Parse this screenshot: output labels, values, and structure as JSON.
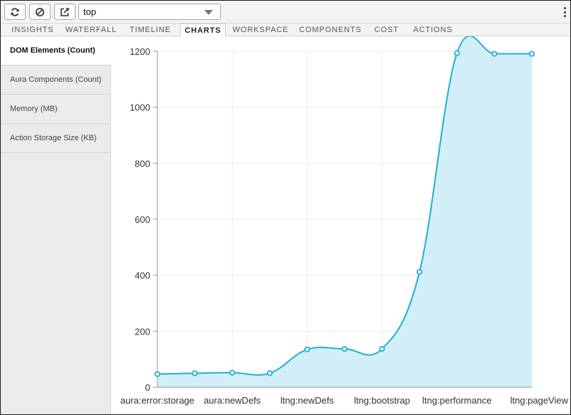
{
  "toolbar": {
    "refresh_icon": "refresh-icon",
    "clear_icon": "clear-icon",
    "open_icon": "open-external-icon",
    "select_value": "top"
  },
  "tabs": [
    {
      "label": "INSIGHTS"
    },
    {
      "label": "WATERFALL"
    },
    {
      "label": "TIMELINE"
    },
    {
      "label": "CHARTS",
      "active": true
    },
    {
      "label": "WORKSPACE"
    },
    {
      "label": "COMPONENTS"
    },
    {
      "label": "COST"
    },
    {
      "label": "ACTIONS"
    }
  ],
  "sidebar": {
    "items": [
      {
        "label": "DOM Elements (Count)",
        "active": true
      },
      {
        "label": "Aura Components (Count)"
      },
      {
        "label": "Memory (MB)"
      },
      {
        "label": "Action Storage Size (KB)"
      }
    ]
  },
  "colors": {
    "line": "#1fb0d4",
    "fill": "#d2eef8",
    "grid": "#ececec",
    "axis": "#999999"
  },
  "chart_data": {
    "type": "area",
    "x": [
      "aura:error:storage",
      "",
      "aura:newDefs",
      "",
      "ltng:newDefs",
      "",
      "ltng:bootstrap",
      "",
      "ltng:performance",
      "",
      "ltng:pageView"
    ],
    "x_tick_labels": [
      "aura:error:storage",
      "aura:newDefs",
      "ltng:newDefs",
      "ltng:bootstrap",
      "ltng:performance",
      "ltng:pageView"
    ],
    "series": [
      {
        "values": [
          47,
          50,
          52,
          50,
          135,
          137,
          137,
          412,
          1193,
          1191,
          1191
        ]
      }
    ],
    "yticks": [
      "0",
      "200",
      "400",
      "600",
      "800",
      "1000",
      "1200"
    ],
    "ylim": [
      0,
      1200
    ],
    "grid": true,
    "smooth": true
  }
}
